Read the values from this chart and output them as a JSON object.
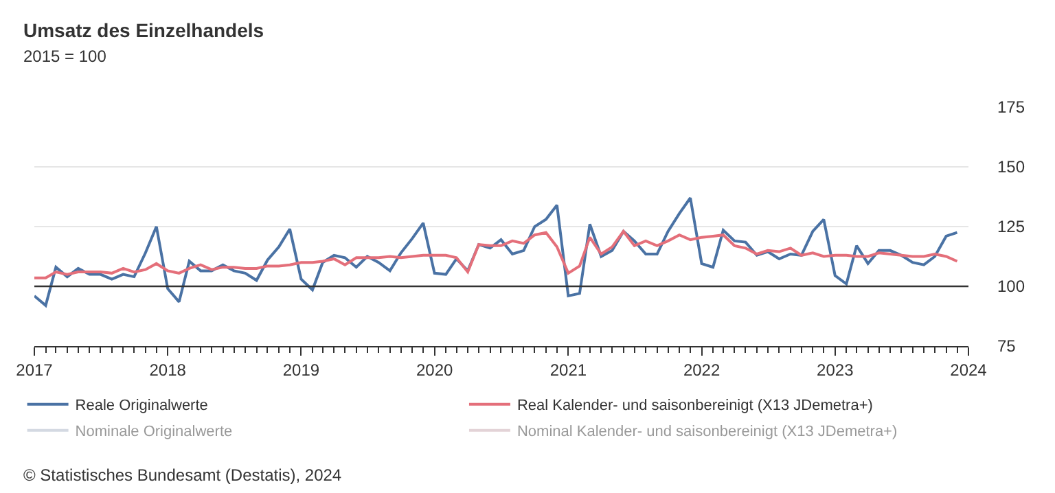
{
  "chart_data": {
    "type": "line",
    "title": "Umsatz des Einzelhandels",
    "subtitle": "2015 = 100",
    "x": [
      "2017-01",
      "2017-02",
      "2017-03",
      "2017-04",
      "2017-05",
      "2017-06",
      "2017-07",
      "2017-08",
      "2017-09",
      "2017-10",
      "2017-11",
      "2017-12",
      "2018-01",
      "2018-02",
      "2018-03",
      "2018-04",
      "2018-05",
      "2018-06",
      "2018-07",
      "2018-08",
      "2018-09",
      "2018-10",
      "2018-11",
      "2018-12",
      "2019-01",
      "2019-02",
      "2019-03",
      "2019-04",
      "2019-05",
      "2019-06",
      "2019-07",
      "2019-08",
      "2019-09",
      "2019-10",
      "2019-11",
      "2019-12",
      "2020-01",
      "2020-02",
      "2020-03",
      "2020-04",
      "2020-05",
      "2020-06",
      "2020-07",
      "2020-08",
      "2020-09",
      "2020-10",
      "2020-11",
      "2020-12",
      "2021-01",
      "2021-02",
      "2021-03",
      "2021-04",
      "2021-05",
      "2021-06",
      "2021-07",
      "2021-08",
      "2021-09",
      "2021-10",
      "2021-11",
      "2021-12",
      "2022-01",
      "2022-02",
      "2022-03",
      "2022-04",
      "2022-05",
      "2022-06",
      "2022-07",
      "2022-08",
      "2022-09",
      "2022-10",
      "2022-11",
      "2022-12",
      "2023-01",
      "2023-02",
      "2023-03",
      "2023-04",
      "2023-05",
      "2023-06",
      "2023-07",
      "2023-08",
      "2023-09",
      "2023-10",
      "2023-11",
      "2023-12"
    ],
    "series": [
      {
        "name": "Reale Originalwerte",
        "color": "#4a72a4",
        "values": [
          96,
          92,
          108,
          104,
          107.5,
          105,
          105,
          103,
          105,
          104,
          114,
          125,
          99,
          93.5,
          110.5,
          106.5,
          106.5,
          109,
          106.5,
          105.5,
          102.5,
          111,
          116.5,
          124,
          103,
          98.5,
          110,
          113,
          112,
          108,
          112.5,
          110,
          106.5,
          114,
          120,
          126.5,
          105.5,
          105,
          111.5,
          106.5,
          117.5,
          116,
          119.5,
          113.5,
          115,
          125,
          128,
          134,
          96,
          97,
          126,
          112.5,
          115,
          123,
          119,
          113.5,
          113.5,
          123,
          130.5,
          137,
          109.5,
          108,
          123.5,
          119,
          118.5,
          113,
          114.5,
          111.5,
          113.5,
          113,
          123,
          128,
          104.5,
          101,
          117,
          109.5,
          115,
          115,
          113,
          110,
          109,
          112.5,
          121,
          122.5
        ]
      },
      {
        "name": "Real Kalender- und saisonbereinigt (X13 JDemetra+)",
        "color": "#e46f7a",
        "values": [
          103.5,
          103.5,
          106,
          105,
          106,
          106,
          106,
          105.5,
          107.5,
          106,
          107,
          109.5,
          106.5,
          105.5,
          107.5,
          109,
          107,
          108,
          108,
          107.5,
          107.5,
          108.5,
          108.5,
          109,
          110,
          110,
          110.5,
          111.5,
          109,
          112,
          112,
          112,
          112.5,
          112,
          112.5,
          113,
          113,
          113,
          112,
          106,
          117.5,
          117,
          117,
          119,
          118,
          121.5,
          122.5,
          116.5,
          105.5,
          108.5,
          120.5,
          113.5,
          116.5,
          123,
          117,
          119,
          117,
          119,
          121.5,
          119.5,
          120.5,
          121,
          121.5,
          117,
          116,
          113.5,
          115,
          114.5,
          116,
          113,
          114,
          112.5,
          113,
          113,
          112.5,
          112.5,
          114,
          113.5,
          113,
          112.5,
          112.5,
          113.5,
          112.5,
          110.5
        ]
      },
      {
        "name": "Nominale Originalwerte",
        "color": "#a9b4c6",
        "values": [
          null,
          null,
          null,
          null,
          null,
          null,
          null,
          null,
          null,
          null,
          null,
          null,
          null,
          null,
          null,
          null,
          null,
          null,
          null,
          null,
          null,
          null,
          null,
          null,
          null,
          null,
          null,
          null,
          null,
          null,
          null,
          null,
          null,
          null,
          null,
          null,
          null,
          null,
          null,
          null,
          null,
          null,
          null,
          null,
          null,
          null,
          null,
          null,
          null,
          null,
          null,
          null,
          null,
          null,
          null,
          null,
          null,
          null,
          null,
          null,
          null,
          null,
          null,
          null,
          null,
          null,
          null,
          null,
          null,
          null,
          null,
          null,
          null,
          null,
          null,
          null,
          null,
          null,
          null,
          null,
          null,
          null,
          null,
          null
        ]
      },
      {
        "name": "Nominal Kalender- und saisonbereinigt (X13 JDemetra+)",
        "color": "#c9a9b0",
        "values": [
          null,
          null,
          null,
          null,
          null,
          null,
          null,
          null,
          null,
          null,
          null,
          null,
          null,
          null,
          null,
          null,
          null,
          null,
          null,
          null,
          null,
          null,
          null,
          null,
          null,
          null,
          null,
          null,
          null,
          null,
          null,
          null,
          null,
          null,
          null,
          null,
          null,
          null,
          null,
          null,
          null,
          null,
          null,
          null,
          null,
          null,
          null,
          null,
          null,
          null,
          null,
          null,
          null,
          null,
          null,
          null,
          null,
          null,
          null,
          null,
          null,
          null,
          null,
          null,
          null,
          null,
          null,
          null,
          null,
          null,
          null,
          null,
          null,
          null,
          null,
          null,
          null,
          null,
          null,
          null,
          null,
          null,
          null,
          null
        ]
      }
    ],
    "xlim": [
      "2017-01",
      "2024-01"
    ],
    "xticks": [
      {
        "value": "2017-01",
        "label": "2017"
      },
      {
        "value": "2018-01",
        "label": "2018"
      },
      {
        "value": "2019-01",
        "label": "2019"
      },
      {
        "value": "2020-01",
        "label": "2020"
      },
      {
        "value": "2021-01",
        "label": "2021"
      },
      {
        "value": "2022-01",
        "label": "2022"
      },
      {
        "value": "2023-01",
        "label": "2023"
      },
      {
        "value": "2024-01",
        "label": "2024"
      }
    ],
    "ylim": [
      75,
      175
    ],
    "yticks": [
      75,
      100,
      125,
      150,
      175
    ],
    "grid": "y",
    "ref_lines": [
      {
        "axis": "y",
        "value": 100,
        "color": "#333333"
      }
    ],
    "legend": "bottom",
    "marker": "none",
    "line_style": "solid",
    "annotations": [
      "© Statistisches Bundesamt (Destatis), 2024"
    ]
  }
}
